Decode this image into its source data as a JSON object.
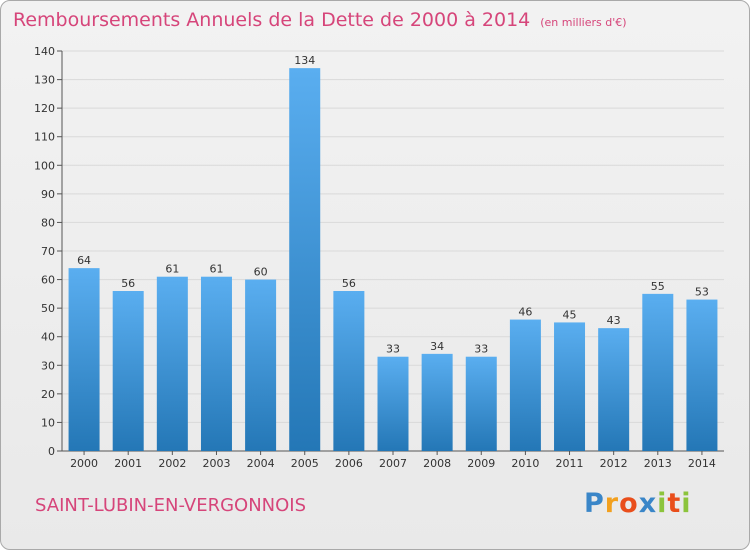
{
  "title": "Remboursements Annuels de la Dette de 2000 à 2014",
  "unit_note": "(en milliers d'€)",
  "place_name": "SAINT-LUBIN-EN-VERGONNOIS",
  "logo": {
    "letters": [
      "P",
      "r",
      "o",
      "x",
      "i",
      "t",
      "i"
    ]
  },
  "colors": {
    "title": "#d6457a",
    "bar_top": "#5aaef0",
    "bar_bottom": "#2477b6",
    "grid": "#d9d9d9"
  },
  "chart_data": {
    "type": "bar",
    "title": "Remboursements Annuels de la Dette de 2000 à 2014",
    "xlabel": "",
    "ylabel": "",
    "ylim": [
      0,
      140
    ],
    "yticks": [
      0,
      10,
      20,
      30,
      40,
      50,
      60,
      70,
      80,
      90,
      100,
      110,
      120,
      130,
      140
    ],
    "grid": true,
    "categories": [
      "2000",
      "2001",
      "2002",
      "2003",
      "2004",
      "2005",
      "2006",
      "2007",
      "2008",
      "2009",
      "2010",
      "2011",
      "2012",
      "2013",
      "2014"
    ],
    "values": [
      64,
      56,
      61,
      61,
      60,
      134,
      56,
      33,
      34,
      33,
      46,
      45,
      43,
      55,
      53
    ]
  }
}
